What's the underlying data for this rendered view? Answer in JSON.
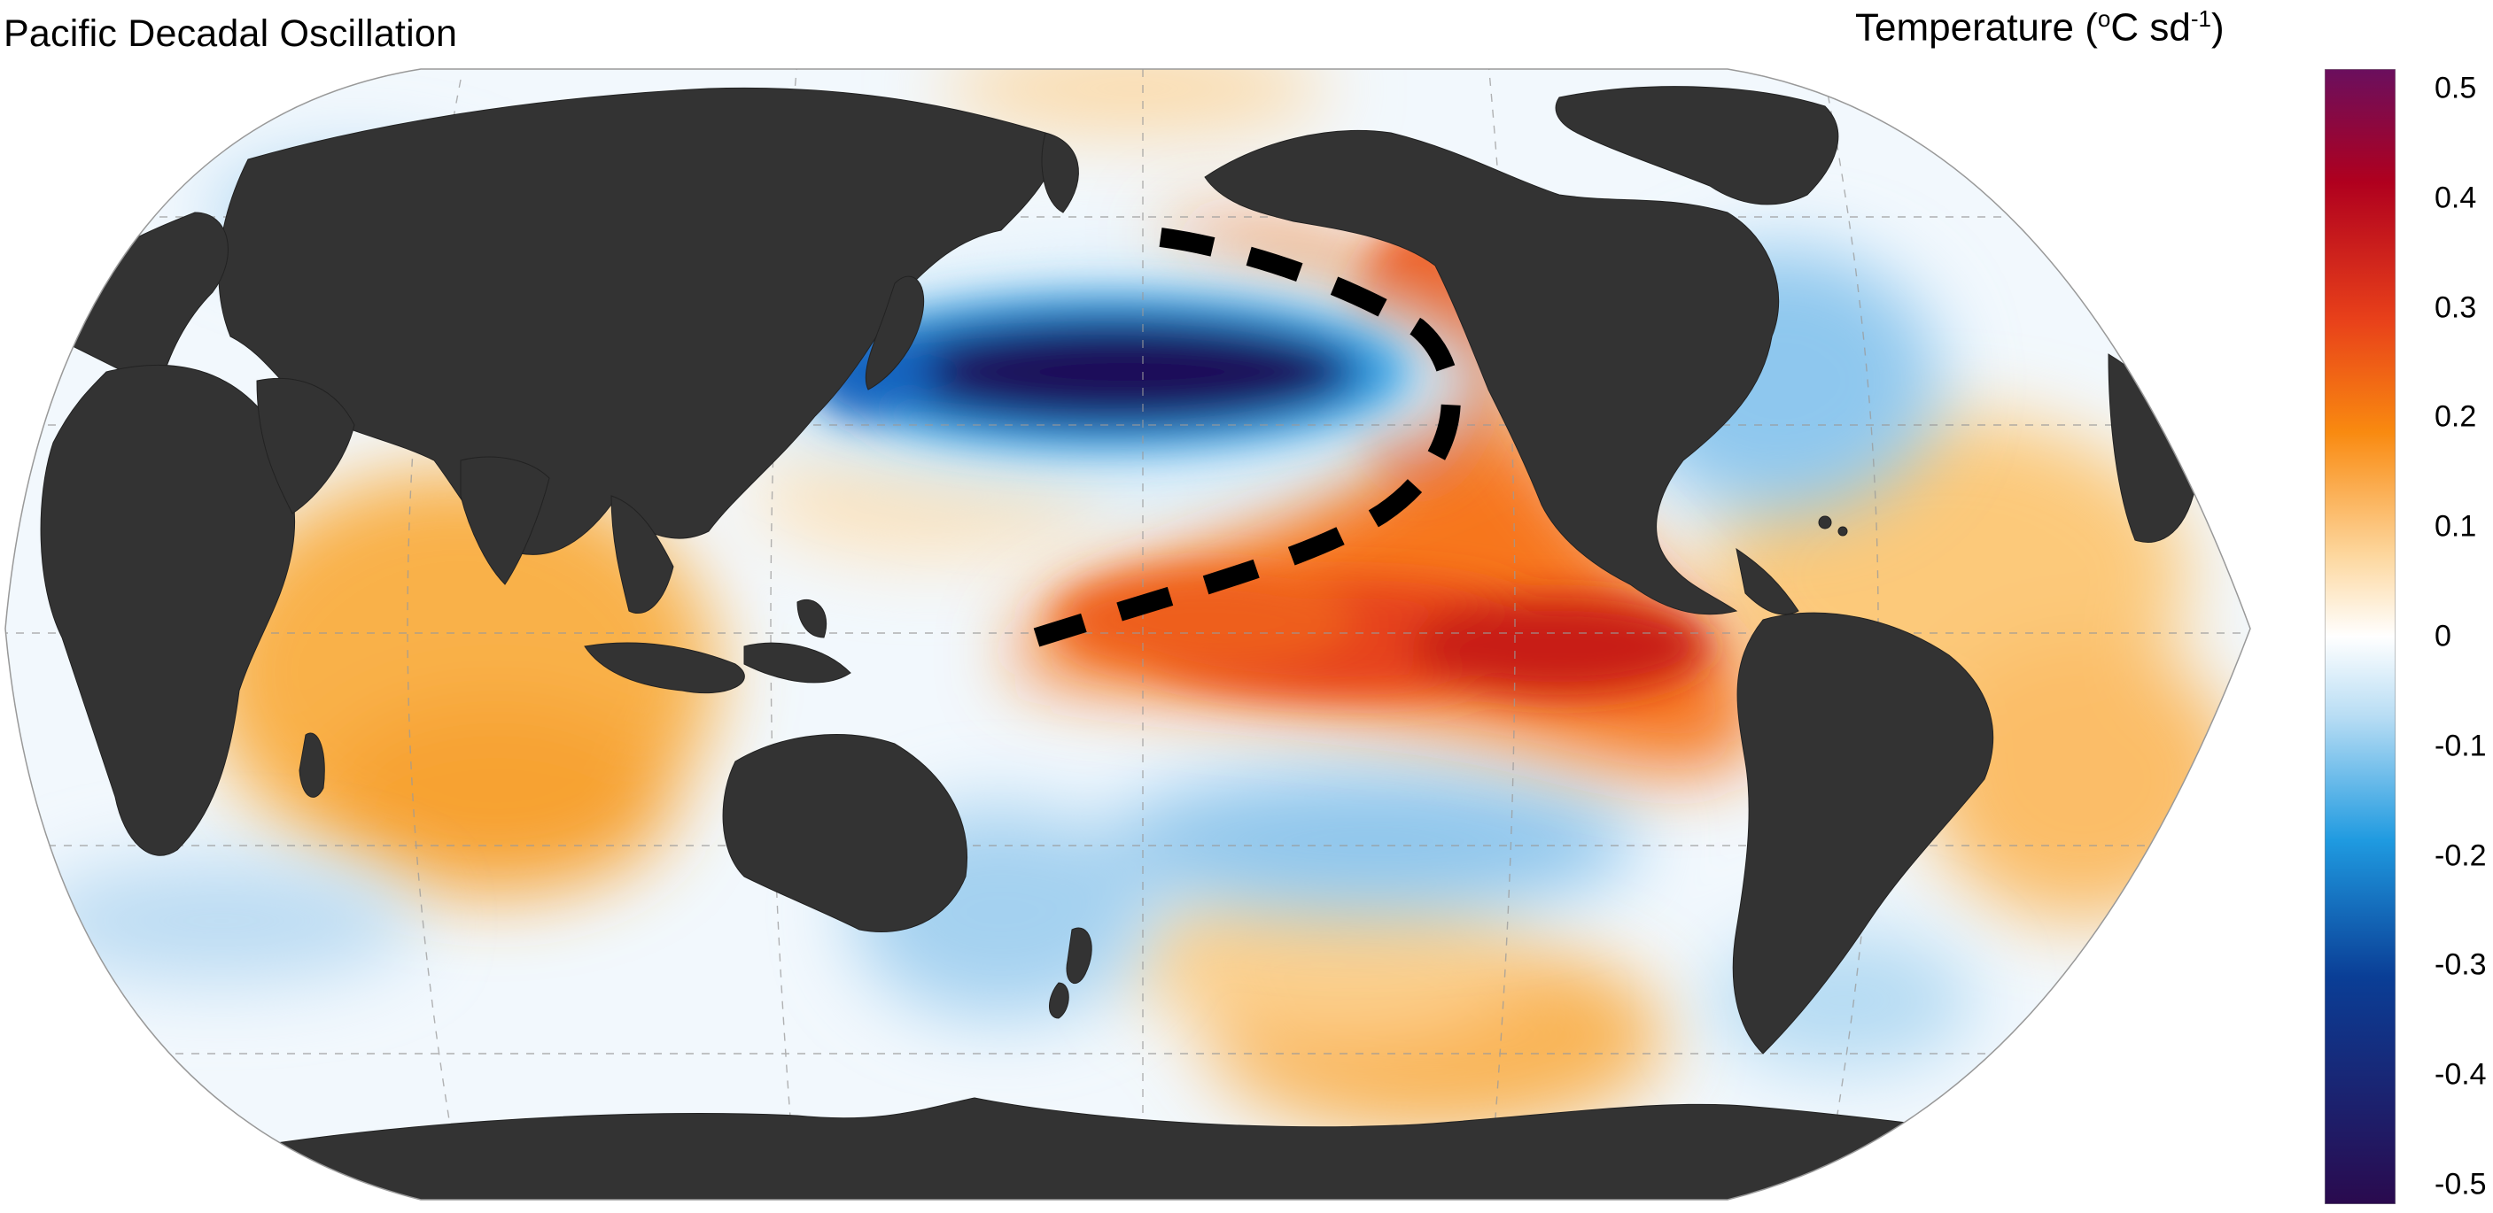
{
  "title": "Pacific Decadal Oscillation",
  "colorbar": {
    "label_prefix": "Temperature (",
    "label_sup1": "o",
    "label_mid": "C sd",
    "label_sup2": "-1",
    "label_suffix": ")",
    "ticks": [
      "0.5",
      "0.4",
      "0.3",
      "0.2",
      "0.1",
      "0",
      "-0.1",
      "-0.2",
      "-0.3",
      "-0.4",
      "-0.5"
    ],
    "range": [
      -0.5,
      0.5
    ],
    "colors": {
      "max": "#6a0f5e",
      "high": "#b0001e",
      "warm": "#e8401a",
      "orange": "#f98a10",
      "light_orange": "#fdd8a0",
      "zero": "#ffffff",
      "light_blue": "#b8ddf4",
      "blue": "#1f9ae0",
      "dark_blue": "#0a3e96",
      "min": "#2a0a4e"
    }
  },
  "land_color": "#333333",
  "annotation": "dashed black boundary line marking the PDO pattern"
}
